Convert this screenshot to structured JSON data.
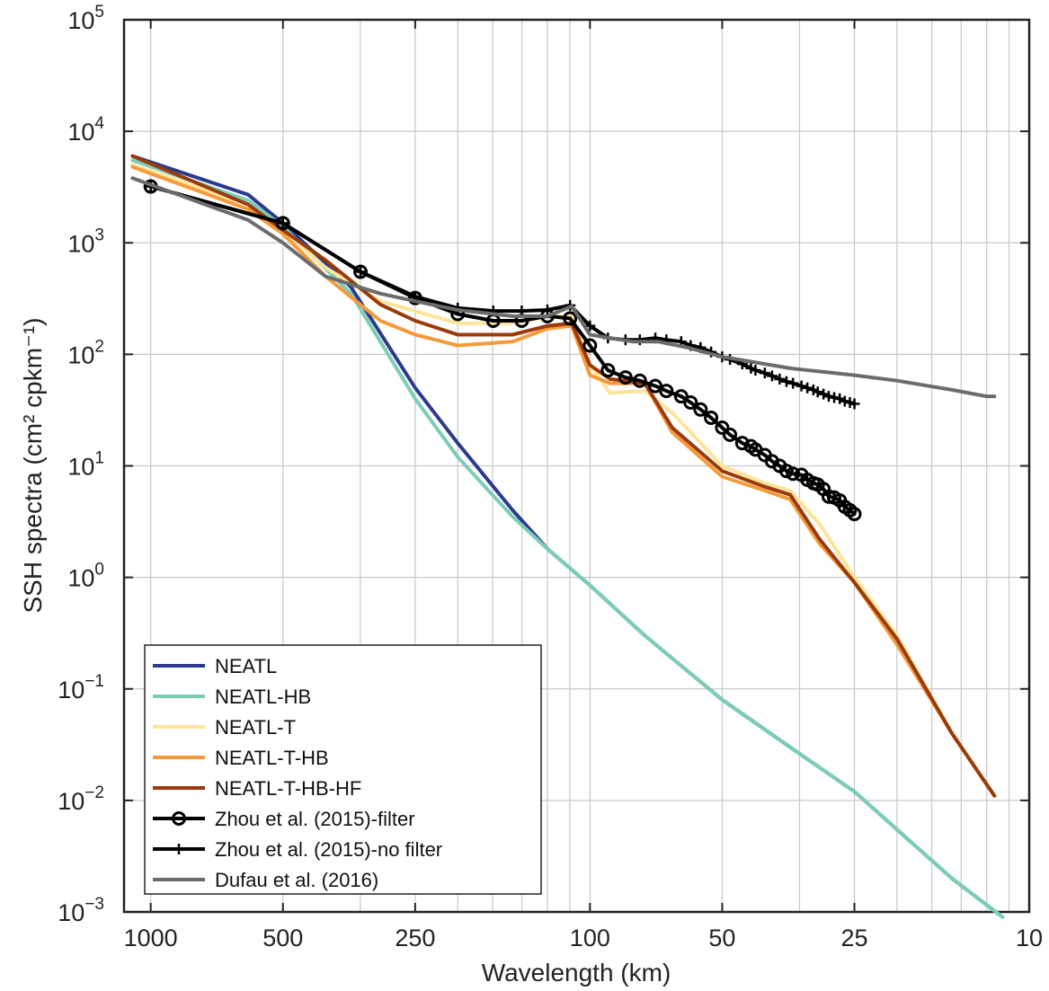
{
  "chart_data": {
    "type": "line",
    "xlabel": "Wavelength (km)",
    "ylabel": "SSH spectra (cm² cpkm⁻¹)",
    "xscale": "log-reciprocal",
    "yscale": "log",
    "xlim": [
      1150,
      10
    ],
    "ylim": [
      0.001,
      100000
    ],
    "grid": true,
    "legend_position": "bottom-left",
    "x_ticks": [
      {
        "value": 1000,
        "label": "1000"
      },
      {
        "value": 500,
        "label": "500"
      },
      {
        "value": 250,
        "label": "250"
      },
      {
        "value": 100,
        "label": "100"
      },
      {
        "value": 50,
        "label": "50"
      },
      {
        "value": 25,
        "label": "25"
      },
      {
        "value": 10,
        "label": "10"
      }
    ],
    "y_ticks": [
      {
        "value": 0.001,
        "base": "10",
        "exp": "−3"
      },
      {
        "value": 0.01,
        "base": "10",
        "exp": "−2"
      },
      {
        "value": 0.1,
        "base": "10",
        "exp": "−1"
      },
      {
        "value": 1,
        "base": "10",
        "exp": "0"
      },
      {
        "value": 10,
        "base": "10",
        "exp": "1"
      },
      {
        "value": 100,
        "base": "10",
        "exp": "2"
      },
      {
        "value": 1000,
        "base": "10",
        "exp": "3"
      },
      {
        "value": 10000,
        "base": "10",
        "exp": "4"
      },
      {
        "value": 100000,
        "base": "10",
        "exp": "5"
      }
    ],
    "series": [
      {
        "name": "NEATL",
        "color": "#2b3a8f",
        "marker": "none",
        "points": [
          [
            1100,
            6000
          ],
          [
            600,
            2700
          ],
          [
            500,
            1500
          ],
          [
            350,
            400
          ],
          [
            250,
            50
          ],
          [
            200,
            16
          ],
          [
            150,
            4
          ],
          [
            125,
            1.8
          ],
          [
            100,
            0.85
          ],
          [
            75,
            0.3
          ],
          [
            50,
            0.08
          ],
          [
            35,
            0.03
          ],
          [
            25,
            0.012
          ],
          [
            15,
            0.002
          ],
          [
            11.5,
            0.0009
          ]
        ]
      },
      {
        "name": "NEATL-HB",
        "color": "#7ccdb8",
        "marker": "none",
        "points": [
          [
            1100,
            5500
          ],
          [
            600,
            2400
          ],
          [
            500,
            1400
          ],
          [
            350,
            350
          ],
          [
            250,
            40
          ],
          [
            200,
            12
          ],
          [
            150,
            3.5
          ],
          [
            125,
            1.8
          ],
          [
            100,
            0.85
          ],
          [
            75,
            0.3
          ],
          [
            50,
            0.08
          ],
          [
            35,
            0.03
          ],
          [
            25,
            0.012
          ],
          [
            15,
            0.002
          ],
          [
            11.5,
            0.0009
          ]
        ]
      },
      {
        "name": "NEATL-T",
        "color": "#fde49a",
        "marker": "none",
        "points": [
          [
            1100,
            5000
          ],
          [
            600,
            2200
          ],
          [
            500,
            1300
          ],
          [
            400,
            600
          ],
          [
            300,
            300
          ],
          [
            200,
            190
          ],
          [
            150,
            190
          ],
          [
            125,
            220
          ],
          [
            110,
            220
          ],
          [
            100,
            80
          ],
          [
            90,
            45
          ],
          [
            75,
            47
          ],
          [
            65,
            30
          ],
          [
            50,
            10
          ],
          [
            40,
            7
          ],
          [
            35,
            6
          ],
          [
            30,
            3
          ],
          [
            25,
            1
          ],
          [
            20,
            0.3
          ],
          [
            15,
            0.04
          ],
          [
            12,
            0.011
          ]
        ]
      },
      {
        "name": "NEATL-T-HB",
        "color": "#f49a3b",
        "marker": "none",
        "points": [
          [
            1100,
            4800
          ],
          [
            600,
            2000
          ],
          [
            500,
            1200
          ],
          [
            400,
            500
          ],
          [
            300,
            200
          ],
          [
            250,
            150
          ],
          [
            200,
            120
          ],
          [
            150,
            130
          ],
          [
            125,
            170
          ],
          [
            110,
            180
          ],
          [
            100,
            65
          ],
          [
            90,
            55
          ],
          [
            75,
            55
          ],
          [
            65,
            20
          ],
          [
            50,
            8
          ],
          [
            40,
            6
          ],
          [
            35,
            5
          ],
          [
            30,
            2
          ],
          [
            25,
            0.9
          ],
          [
            20,
            0.25
          ],
          [
            15,
            0.04
          ],
          [
            12,
            0.011
          ]
        ]
      },
      {
        "name": "NEATL-T-HB-HF",
        "color": "#9b3a0a",
        "marker": "none",
        "points": [
          [
            1100,
            6000
          ],
          [
            600,
            2200
          ],
          [
            500,
            1300
          ],
          [
            400,
            700
          ],
          [
            300,
            280
          ],
          [
            250,
            200
          ],
          [
            200,
            150
          ],
          [
            150,
            150
          ],
          [
            125,
            180
          ],
          [
            110,
            190
          ],
          [
            100,
            80
          ],
          [
            90,
            60
          ],
          [
            75,
            55
          ],
          [
            65,
            22
          ],
          [
            50,
            9
          ],
          [
            40,
            6.5
          ],
          [
            35,
            5.5
          ],
          [
            30,
            2.2
          ],
          [
            25,
            0.9
          ],
          [
            20,
            0.28
          ],
          [
            15,
            0.04
          ],
          [
            12,
            0.011
          ]
        ]
      },
      {
        "name": "Zhou et al. (2015)-filter",
        "color": "#000000",
        "marker": "circle",
        "points": [
          [
            1000,
            3200
          ],
          [
            500,
            1500
          ],
          [
            333,
            550
          ],
          [
            250,
            320
          ],
          [
            200,
            230
          ],
          [
            166,
            200
          ],
          [
            143,
            200
          ],
          [
            125,
            220
          ],
          [
            111,
            210
          ],
          [
            100,
            120
          ],
          [
            91,
            72
          ],
          [
            83,
            62
          ],
          [
            77,
            58
          ],
          [
            71,
            52
          ],
          [
            67,
            47
          ],
          [
            62,
            42
          ],
          [
            59,
            37
          ],
          [
            56,
            32
          ],
          [
            53,
            27
          ],
          [
            50,
            22
          ],
          [
            48,
            19
          ],
          [
            45,
            16
          ],
          [
            43,
            15
          ],
          [
            42,
            14
          ],
          [
            40,
            12.5
          ],
          [
            38.5,
            11
          ],
          [
            37,
            10
          ],
          [
            35.7,
            9
          ],
          [
            34.5,
            8.5
          ],
          [
            33,
            8.3
          ],
          [
            32,
            7.5
          ],
          [
            31,
            7
          ],
          [
            30.3,
            6.8
          ],
          [
            29.4,
            6.2
          ],
          [
            28.6,
            5.3
          ],
          [
            27.8,
            5.2
          ],
          [
            27,
            4.9
          ],
          [
            26.3,
            4.3
          ],
          [
            25.6,
            4
          ],
          [
            25,
            3.7
          ]
        ]
      },
      {
        "name": "Zhou et al. (2015)-no filter",
        "color": "#000000",
        "marker": "plus",
        "points": [
          [
            1000,
            3200
          ],
          [
            500,
            1500
          ],
          [
            333,
            550
          ],
          [
            250,
            330
          ],
          [
            200,
            260
          ],
          [
            166,
            245
          ],
          [
            143,
            245
          ],
          [
            125,
            250
          ],
          [
            111,
            275
          ],
          [
            100,
            180
          ],
          [
            91,
            140
          ],
          [
            83,
            135
          ],
          [
            77,
            135
          ],
          [
            71,
            140
          ],
          [
            67,
            135
          ],
          [
            62,
            130
          ],
          [
            59,
            120
          ],
          [
            56,
            115
          ],
          [
            53,
            105
          ],
          [
            50,
            95
          ],
          [
            48,
            90
          ],
          [
            45,
            82
          ],
          [
            43,
            75
          ],
          [
            42,
            72
          ],
          [
            40,
            68
          ],
          [
            38.5,
            64
          ],
          [
            37,
            60
          ],
          [
            35.7,
            57
          ],
          [
            34.5,
            55
          ],
          [
            33,
            52
          ],
          [
            32,
            50
          ],
          [
            31,
            48
          ],
          [
            30.3,
            46
          ],
          [
            29.4,
            44
          ],
          [
            28.6,
            42
          ],
          [
            27.8,
            41
          ],
          [
            27,
            40
          ],
          [
            26.3,
            38
          ],
          [
            25.6,
            37
          ],
          [
            25,
            36
          ]
        ]
      },
      {
        "name": "Dufau et al. (2016)",
        "color": "#6b6b6b",
        "marker": "none",
        "points": [
          [
            1100,
            3800
          ],
          [
            600,
            1600
          ],
          [
            500,
            1000
          ],
          [
            400,
            500
          ],
          [
            300,
            350
          ],
          [
            250,
            300
          ],
          [
            200,
            250
          ],
          [
            150,
            220
          ],
          [
            125,
            220
          ],
          [
            110,
            270
          ],
          [
            100,
            150
          ],
          [
            80,
            130
          ],
          [
            70,
            130
          ],
          [
            60,
            115
          ],
          [
            50,
            95
          ],
          [
            40,
            82
          ],
          [
            35,
            75
          ],
          [
            25,
            65
          ],
          [
            20,
            58
          ],
          [
            15,
            48
          ],
          [
            12.5,
            42
          ],
          [
            12,
            42
          ]
        ]
      }
    ]
  }
}
